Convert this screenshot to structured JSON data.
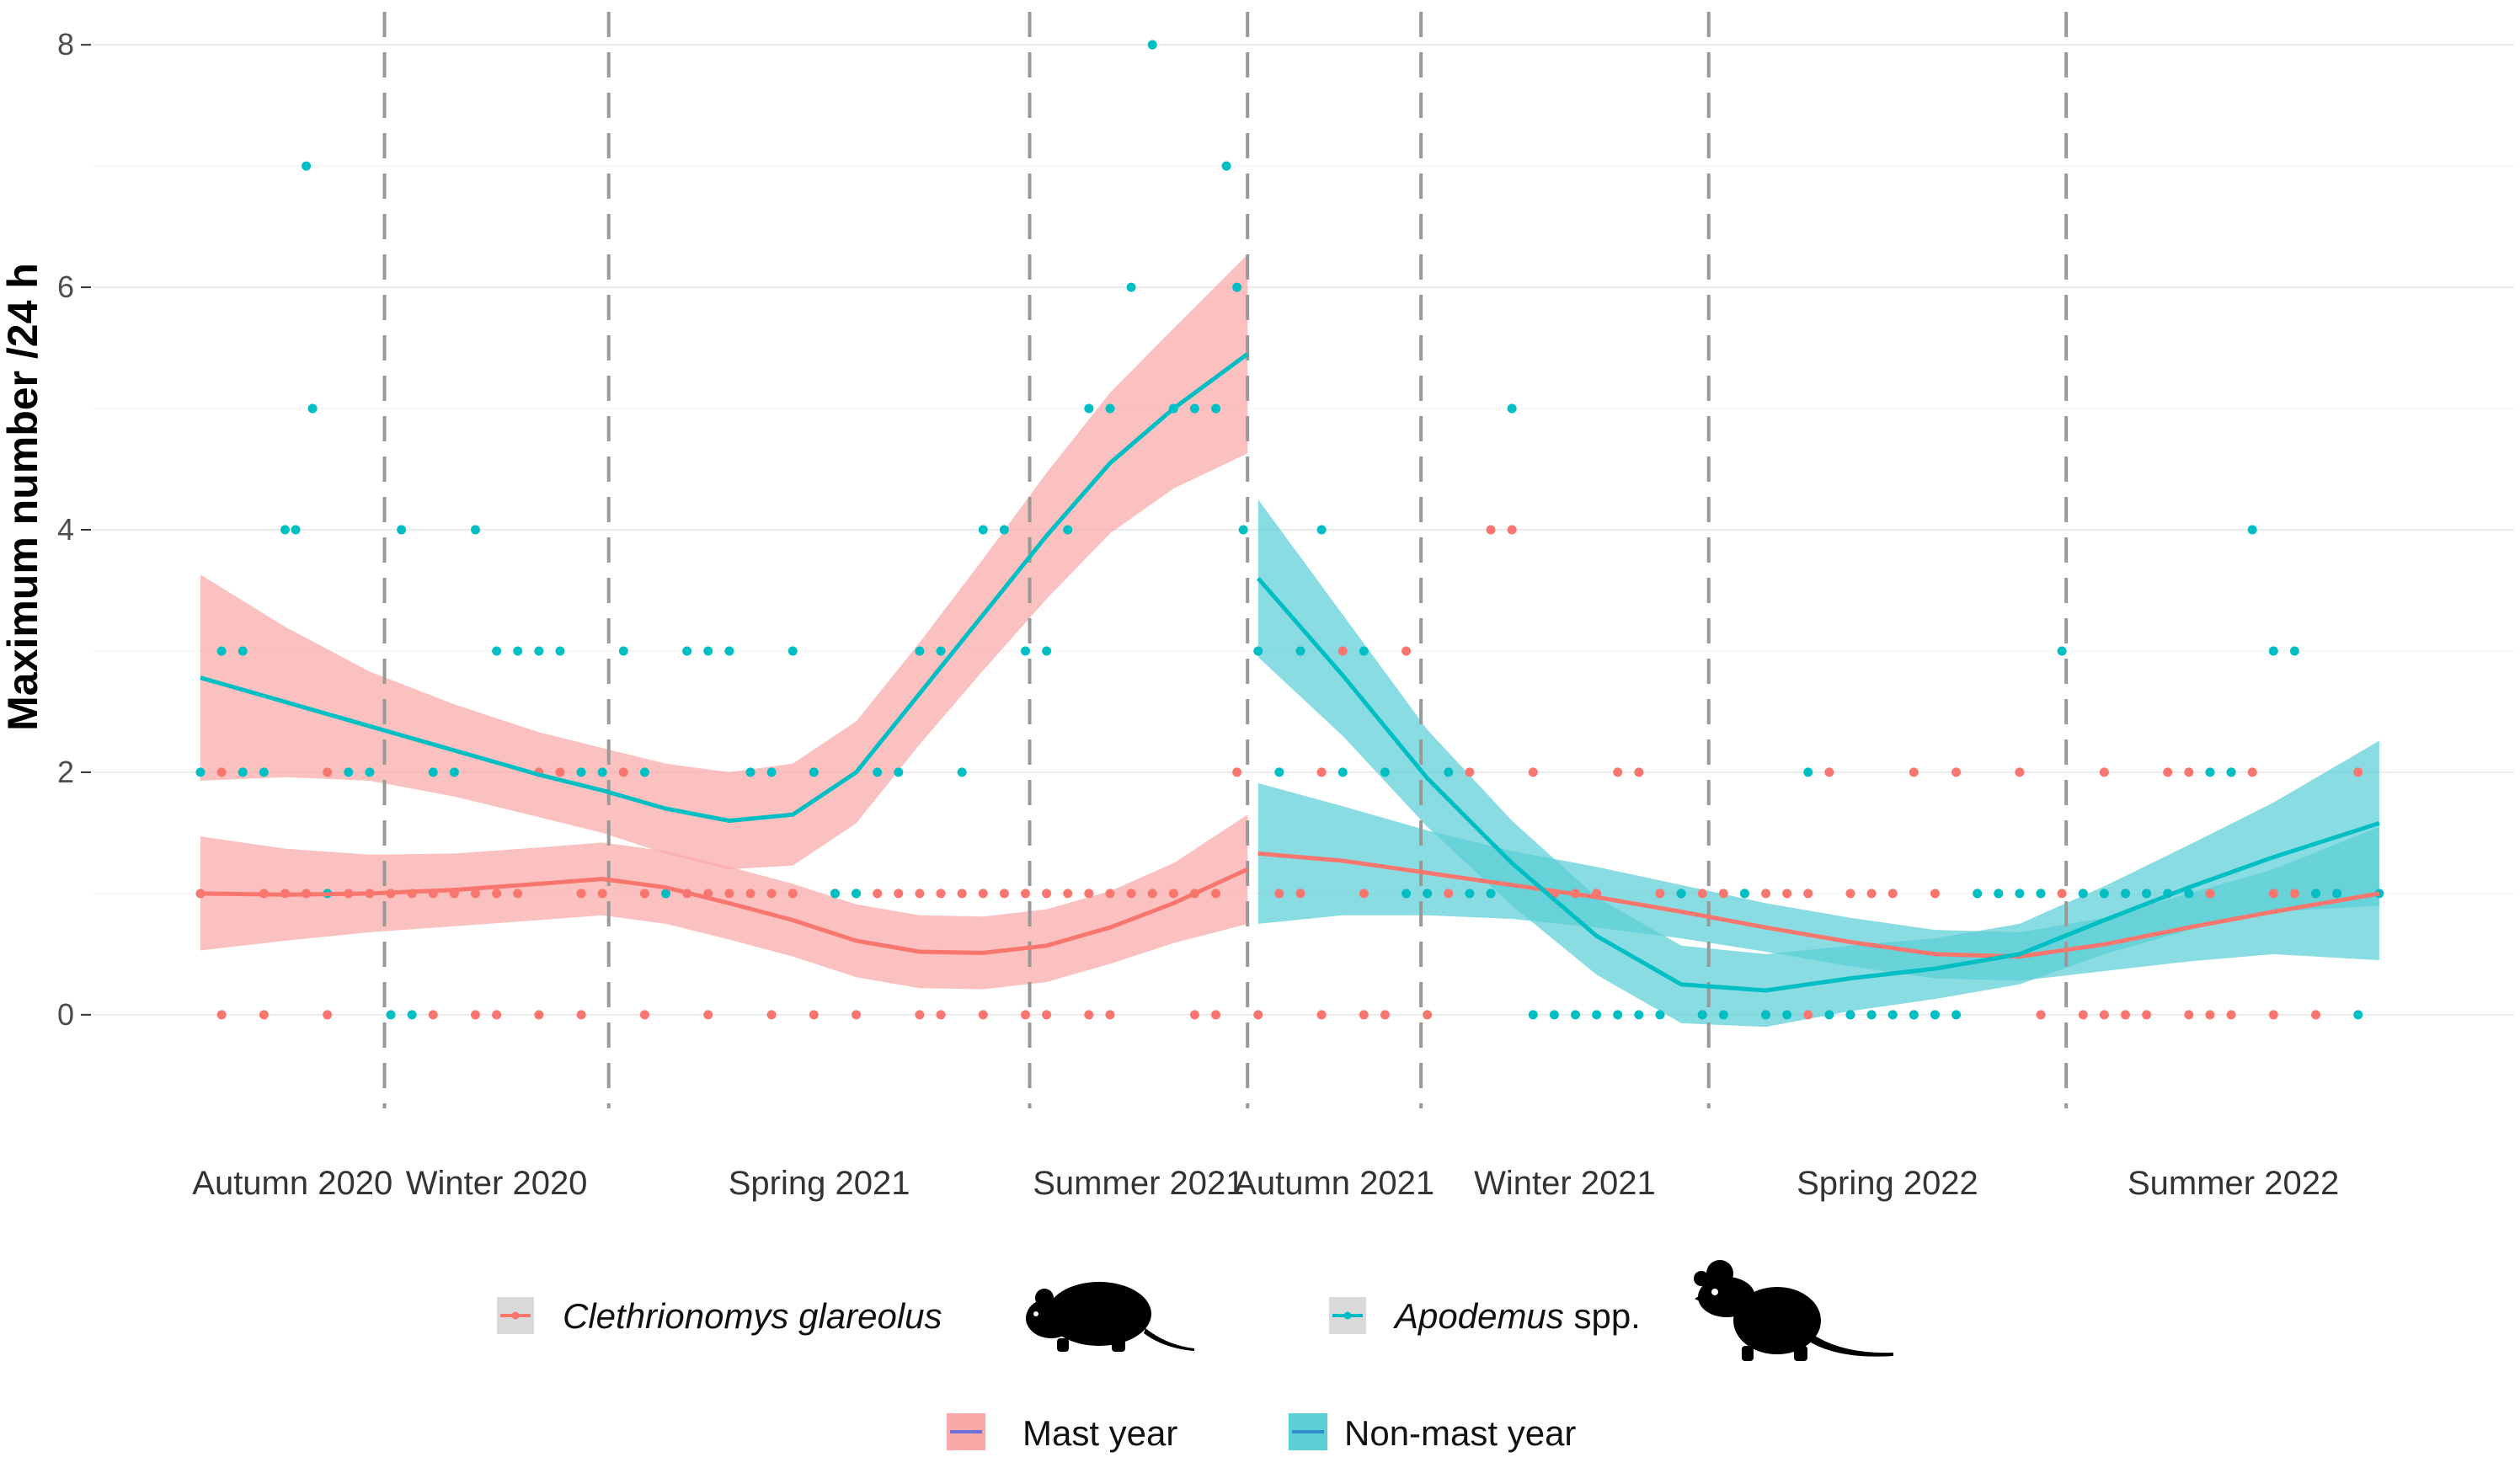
{
  "chart_data": {
    "type": "scatter",
    "ylabel": "Maximum number /24 h",
    "xlabel": "",
    "ylim": [
      -0.8,
      8.3
    ],
    "y_ticks": [
      "0",
      "2",
      "4",
      "6",
      "8"
    ],
    "seasons": [
      "Autumn 2020",
      "Winter 2020",
      "Spring 2021",
      "Summer 2021",
      "Autumn 2021",
      "Winter 2021",
      "Spring 2022",
      "Summer 2022"
    ],
    "x_axis_units": "weeks from start of Autumn 2020 (estimated)",
    "season_boundaries": [
      8.7,
      19.3,
      39.2,
      49.5,
      57.7,
      71.3,
      88.2
    ],
    "x_range": [
      0,
      104
    ],
    "colors": {
      "clethrionomys": "#F8766D",
      "apodemus": "#00BFC4",
      "mast_ribbon": "#F8A9A8",
      "nonmast_ribbon": "#5CCFD5",
      "grid": "#ebebeb",
      "boundary": "#999999"
    },
    "series": [
      {
        "name": "Clethrionomys glareolus",
        "species_key": "clethrionomys",
        "points": [
          [
            0,
            1
          ],
          [
            1,
            2
          ],
          [
            2,
            2
          ],
          [
            3,
            1
          ],
          [
            4,
            1
          ],
          [
            5,
            1
          ],
          [
            6,
            2
          ],
          [
            7,
            1
          ],
          [
            8,
            1
          ],
          [
            9,
            1
          ],
          [
            10,
            1
          ],
          [
            11,
            1
          ],
          [
            12,
            1
          ],
          [
            13,
            1
          ],
          [
            14,
            1
          ],
          [
            15,
            1
          ],
          [
            16,
            2
          ],
          [
            17,
            2
          ],
          [
            18,
            1
          ],
          [
            19,
            1
          ],
          [
            20,
            2
          ],
          [
            21,
            1
          ],
          [
            22,
            1
          ],
          [
            23,
            1
          ],
          [
            24,
            1
          ],
          [
            25,
            1
          ],
          [
            26,
            1
          ],
          [
            27,
            1
          ],
          [
            28,
            1
          ],
          [
            29,
            2
          ],
          [
            30,
            1
          ],
          [
            31,
            1
          ],
          [
            32,
            1
          ],
          [
            33,
            1
          ],
          [
            34,
            1
          ],
          [
            35,
            1
          ],
          [
            36,
            1
          ],
          [
            37,
            1
          ],
          [
            38,
            1
          ],
          [
            39,
            1
          ],
          [
            40,
            1
          ],
          [
            41,
            1
          ],
          [
            42,
            1
          ],
          [
            43,
            1
          ],
          [
            44,
            1
          ],
          [
            45,
            1
          ],
          [
            46,
            1
          ],
          [
            47,
            1
          ],
          [
            48,
            1
          ],
          [
            49,
            2
          ],
          [
            1,
            0
          ],
          [
            3,
            0
          ],
          [
            6,
            0
          ],
          [
            11,
            0
          ],
          [
            13,
            0
          ],
          [
            14,
            0
          ],
          [
            16,
            0
          ],
          [
            18,
            0
          ],
          [
            21,
            0
          ],
          [
            24,
            0
          ],
          [
            27,
            0
          ],
          [
            29,
            0
          ],
          [
            31,
            0
          ],
          [
            34,
            0
          ],
          [
            35,
            0
          ],
          [
            37,
            0
          ],
          [
            39,
            0
          ],
          [
            40,
            0
          ],
          [
            42,
            0
          ],
          [
            43,
            0
          ],
          [
            47,
            0
          ],
          [
            48,
            0
          ],
          [
            50,
            0
          ],
          [
            51,
            1
          ],
          [
            52,
            1
          ],
          [
            53,
            2
          ],
          [
            54,
            3
          ],
          [
            55,
            1
          ],
          [
            56,
            0
          ],
          [
            57,
            3
          ],
          [
            58,
            1
          ],
          [
            59,
            1
          ],
          [
            60,
            2
          ],
          [
            61,
            4
          ],
          [
            62,
            4
          ],
          [
            63,
            2
          ],
          [
            64,
            1
          ],
          [
            65,
            1
          ],
          [
            66,
            1
          ],
          [
            67,
            2
          ],
          [
            68,
            2
          ],
          [
            69,
            1
          ],
          [
            70,
            1
          ],
          [
            71,
            1
          ],
          [
            72,
            1
          ],
          [
            73,
            1
          ],
          [
            74,
            1
          ],
          [
            75,
            1
          ],
          [
            76,
            1
          ],
          [
            77,
            2
          ],
          [
            78,
            1
          ],
          [
            79,
            1
          ],
          [
            80,
            1
          ],
          [
            81,
            2
          ],
          [
            82,
            1
          ],
          [
            83,
            2
          ],
          [
            84,
            1
          ],
          [
            85,
            1
          ],
          [
            86,
            2
          ],
          [
            87,
            1
          ],
          [
            88,
            1
          ],
          [
            89,
            1
          ],
          [
            90,
            2
          ],
          [
            91,
            1
          ],
          [
            92,
            1
          ],
          [
            93,
            2
          ],
          [
            94,
            2
          ],
          [
            95,
            1
          ],
          [
            96,
            2
          ],
          [
            97,
            2
          ],
          [
            98,
            1
          ],
          [
            99,
            1
          ],
          [
            100,
            1
          ],
          [
            101,
            1
          ],
          [
            102,
            2
          ],
          [
            53,
            0
          ],
          [
            55,
            0
          ],
          [
            58,
            0
          ],
          [
            71,
            0
          ],
          [
            74,
            0
          ],
          [
            76,
            0
          ],
          [
            78,
            0
          ],
          [
            79,
            0
          ],
          [
            80,
            0
          ],
          [
            81,
            0
          ],
          [
            82,
            0
          ],
          [
            87,
            0
          ],
          [
            89,
            0
          ],
          [
            90,
            0
          ],
          [
            91,
            0
          ],
          [
            92,
            0
          ],
          [
            94,
            0
          ],
          [
            95,
            0
          ],
          [
            96,
            0
          ],
          [
            98,
            0
          ],
          [
            100,
            0
          ]
        ]
      },
      {
        "name": "Apodemus spp.",
        "species_key": "apodemus",
        "points": [
          [
            0,
            2
          ],
          [
            1,
            3
          ],
          [
            2,
            3
          ],
          [
            2,
            2
          ],
          [
            3,
            2
          ],
          [
            4,
            4
          ],
          [
            4.5,
            4
          ],
          [
            5,
            7
          ],
          [
            5.3,
            5
          ],
          [
            6,
            1
          ],
          [
            7,
            2
          ],
          [
            8,
            2
          ],
          [
            9,
            0
          ],
          [
            9.5,
            4
          ],
          [
            10,
            0
          ],
          [
            11,
            2
          ],
          [
            12,
            2
          ],
          [
            13,
            4
          ],
          [
            14,
            3
          ],
          [
            15,
            3
          ],
          [
            16,
            3
          ],
          [
            17,
            3
          ],
          [
            18,
            2
          ],
          [
            19,
            2
          ],
          [
            20,
            3
          ],
          [
            21,
            2
          ],
          [
            22,
            1
          ],
          [
            23,
            3
          ],
          [
            24,
            3
          ],
          [
            25,
            3
          ],
          [
            26,
            2
          ],
          [
            27,
            2
          ],
          [
            28,
            3
          ],
          [
            29,
            2
          ],
          [
            30,
            1
          ],
          [
            31,
            1
          ],
          [
            32,
            2
          ],
          [
            33,
            2
          ],
          [
            34,
            3
          ],
          [
            35,
            3
          ],
          [
            36,
            2
          ],
          [
            37,
            4
          ],
          [
            38,
            4
          ],
          [
            39,
            3
          ],
          [
            40,
            3
          ],
          [
            41,
            4
          ],
          [
            42,
            5
          ],
          [
            43,
            5
          ],
          [
            44,
            6
          ],
          [
            45,
            8
          ],
          [
            46,
            5
          ],
          [
            47,
            5
          ],
          [
            48,
            5
          ],
          [
            48.5,
            7
          ],
          [
            49,
            6
          ],
          [
            49.3,
            4
          ],
          [
            50,
            3
          ],
          [
            51,
            2
          ],
          [
            52,
            3
          ],
          [
            53,
            4
          ],
          [
            54,
            2
          ],
          [
            55,
            3
          ],
          [
            56,
            2
          ],
          [
            57,
            1
          ],
          [
            58,
            1
          ],
          [
            59,
            2
          ],
          [
            60,
            1
          ],
          [
            61,
            1
          ],
          [
            62,
            5
          ],
          [
            63,
            0
          ],
          [
            64,
            0
          ],
          [
            65,
            0
          ],
          [
            66,
            0
          ],
          [
            67,
            0
          ],
          [
            68,
            0
          ],
          [
            69,
            0
          ],
          [
            70,
            1
          ],
          [
            71,
            0
          ],
          [
            72,
            0
          ],
          [
            73,
            1
          ],
          [
            74,
            0
          ],
          [
            75,
            0
          ],
          [
            76,
            2
          ],
          [
            77,
            0
          ],
          [
            78,
            0
          ],
          [
            79,
            0
          ],
          [
            80,
            0
          ],
          [
            81,
            0
          ],
          [
            82,
            0
          ],
          [
            83,
            0
          ],
          [
            84,
            1
          ],
          [
            85,
            1
          ],
          [
            86,
            1
          ],
          [
            87,
            1
          ],
          [
            88,
            3
          ],
          [
            89,
            1
          ],
          [
            90,
            1
          ],
          [
            91,
            1
          ],
          [
            92,
            1
          ],
          [
            93,
            1
          ],
          [
            94,
            1
          ],
          [
            95,
            2
          ],
          [
            96,
            2
          ],
          [
            97,
            4
          ],
          [
            98,
            3
          ],
          [
            99,
            3
          ],
          [
            100,
            1
          ],
          [
            101,
            1
          ],
          [
            102,
            0
          ],
          [
            103,
            1
          ]
        ]
      }
    ],
    "smooths": [
      {
        "name": "Clethrionomys glareolus, Autumn 2020 – Summer 2021",
        "species_key": "clethrionomys",
        "ribbon": "mast_ribbon",
        "x": [
          0,
          4,
          8,
          12,
          16,
          19,
          22,
          25,
          28,
          31,
          34,
          37,
          40,
          43,
          46,
          49.5
        ],
        "y": [
          1.0,
          0.99,
          1.0,
          1.03,
          1.08,
          1.12,
          1.05,
          0.92,
          0.78,
          0.61,
          0.52,
          0.51,
          0.57,
          0.72,
          0.92,
          1.2
        ],
        "se": [
          0.47,
          0.38,
          0.32,
          0.3,
          0.3,
          0.3,
          0.3,
          0.3,
          0.3,
          0.3,
          0.3,
          0.3,
          0.3,
          0.3,
          0.33,
          0.45
        ]
      },
      {
        "name": "Apodemus spp., Autumn 2020 – Summer 2021",
        "species_key": "apodemus",
        "ribbon": "mast_ribbon",
        "x": [
          0,
          4,
          8,
          12,
          16,
          19,
          22,
          25,
          28,
          31,
          34,
          37,
          40,
          43,
          46,
          49.5
        ],
        "y": [
          2.78,
          2.58,
          2.38,
          2.18,
          1.98,
          1.85,
          1.7,
          1.6,
          1.65,
          2.0,
          2.65,
          3.3,
          3.95,
          4.55,
          5.0,
          5.45
        ],
        "se": [
          0.85,
          0.62,
          0.45,
          0.38,
          0.35,
          0.35,
          0.37,
          0.4,
          0.42,
          0.42,
          0.42,
          0.46,
          0.52,
          0.58,
          0.66,
          0.82
        ]
      },
      {
        "name": "Clethrionomys glareolus, Autumn 2021 – Summer 2022",
        "species_key": "clethrionomys",
        "ribbon": "nonmast_ribbon",
        "x": [
          50,
          54,
          58,
          62,
          66,
          70,
          74,
          78,
          82,
          86,
          90,
          94,
          98,
          103
        ],
        "y": [
          1.33,
          1.27,
          1.17,
          1.07,
          0.97,
          0.85,
          0.72,
          0.6,
          0.5,
          0.48,
          0.58,
          0.72,
          0.85,
          1.0
        ],
        "se": [
          0.58,
          0.45,
          0.35,
          0.28,
          0.25,
          0.22,
          0.2,
          0.2,
          0.2,
          0.2,
          0.22,
          0.28,
          0.35,
          0.55
        ]
      },
      {
        "name": "Apodemus spp., Autumn 2021 – Summer 2022",
        "species_key": "apodemus",
        "ribbon": "nonmast_ribbon",
        "x": [
          50,
          54,
          58,
          62,
          66,
          70,
          74,
          78,
          82,
          86,
          90,
          94,
          98,
          103
        ],
        "y": [
          3.6,
          2.8,
          1.95,
          1.25,
          0.65,
          0.25,
          0.2,
          0.3,
          0.38,
          0.5,
          0.78,
          1.05,
          1.3,
          1.58
        ],
        "se": [
          0.65,
          0.5,
          0.4,
          0.35,
          0.32,
          0.32,
          0.3,
          0.27,
          0.25,
          0.25,
          0.28,
          0.35,
          0.45,
          0.68
        ]
      }
    ]
  },
  "legend": {
    "species": [
      {
        "label_italic": "Clethrionomys glareolus",
        "label_plain": "",
        "color": "#F8766D",
        "icon": "bank-vole-silhouette-icon"
      },
      {
        "label_italic": "Apodemus",
        "label_plain": " spp.",
        "color": "#00BFC4",
        "icon": "wood-mouse-silhouette-icon"
      }
    ],
    "year_types": [
      {
        "label": "Mast year",
        "fill": "#F8A9A8",
        "line": "#6F6FD8"
      },
      {
        "label": "Non-mast year",
        "fill": "#5CCFD5",
        "line": "#2E8CC8"
      }
    ]
  }
}
